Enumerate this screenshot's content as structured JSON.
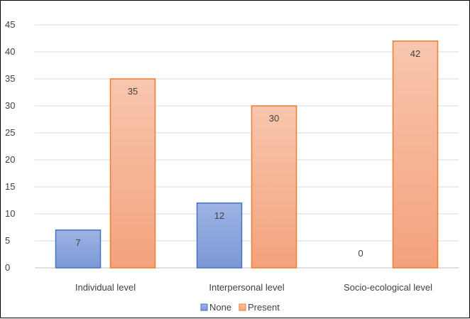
{
  "chart_data": {
    "type": "bar",
    "categories": [
      "Individual level",
      "Interpersonal level",
      "Socio-ecological level"
    ],
    "series": [
      {
        "name": "None",
        "values": [
          7,
          12,
          0
        ],
        "color": "#4472C4"
      },
      {
        "name": "Present",
        "values": [
          35,
          30,
          42
        ],
        "color": "#ED7D31"
      }
    ],
    "ylim": [
      0,
      45
    ],
    "yticks": [
      0,
      5,
      10,
      15,
      20,
      25,
      30,
      35,
      40,
      45
    ],
    "grid": true,
    "legend_position": "bottom"
  }
}
